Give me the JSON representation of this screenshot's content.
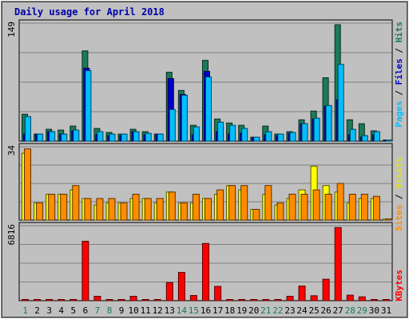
{
  "chart_data": {
    "type": "bar",
    "title": "Daily usage for April 2018",
    "days": [
      "1",
      "2",
      "3",
      "4",
      "5",
      "6",
      "7",
      "8",
      "9",
      "10",
      "11",
      "12",
      "13",
      "14",
      "15",
      "16",
      "17",
      "18",
      "19",
      "20",
      "21",
      "22",
      "23",
      "24",
      "25",
      "26",
      "27",
      "28",
      "29",
      "30",
      "31"
    ],
    "weekend_days": [
      "1",
      "7",
      "8",
      "14",
      "15",
      "21",
      "22",
      "28",
      "29"
    ],
    "panels": [
      {
        "id": "hits",
        "ymax_label": "149",
        "ymax": 149,
        "axis_labels": [
          "Pages",
          "Files",
          "Hits"
        ],
        "series": [
          {
            "name": "Hits",
            "color": "#1a7a5a",
            "values": [
              34,
              9,
              15,
              14,
              19,
              114,
              16,
              11,
              9,
              15,
              12,
              9,
              87,
              64,
              20,
              102,
              28,
              23,
              20,
              5,
              19,
              9,
              12,
              27,
              38,
              80,
              147,
              27,
              22,
              13,
              0
            ]
          },
          {
            "name": "Pages",
            "color": "#0000cc",
            "values": [
              9,
              9,
              12,
              9,
              13,
              92,
              8,
              7,
              7,
              12,
              8,
              9,
              79,
              59,
              8,
              88,
              12,
              9,
              10,
              5,
              8,
              7,
              10,
              22,
              28,
              44,
              52,
              8,
              5,
              8,
              0
            ]
          },
          {
            "name": "Files",
            "color": "#00bfff",
            "values": [
              31,
              9,
              12,
              9,
              14,
              89,
              12,
              9,
              9,
              12,
              10,
              9,
              40,
              58,
              18,
              81,
              24,
              20,
              16,
              5,
              12,
              9,
              11,
              22,
              29,
              45,
              97,
              15,
              7,
              12,
              0
            ]
          }
        ]
      },
      {
        "id": "visits",
        "ymax_label": "34",
        "ymax": 34,
        "axis_labels": [
          "Sites",
          "Visits"
        ],
        "series": [
          {
            "name": "Visits",
            "color": "#ffff00",
            "values": [
              31,
              8,
              12,
              12,
              14,
              10,
              7,
              8,
              8,
              10,
              10,
              8,
              13,
              8,
              8,
              10,
              12,
              16,
              14,
              5,
              12,
              7,
              10,
              14,
              25,
              16,
              13,
              8,
              10,
              10,
              0
            ]
          },
          {
            "name": "Sites",
            "color": "#ff8c00",
            "values": [
              33,
              8,
              12,
              12,
              16,
              10,
              10,
              10,
              8,
              12,
              10,
              10,
              13,
              8,
              12,
              10,
              14,
              16,
              16,
              5,
              16,
              8,
              12,
              12,
              14,
              12,
              17,
              12,
              12,
              11,
              0
            ]
          }
        ]
      },
      {
        "id": "kbytes",
        "ymax_label": "6816",
        "ymax": 6816,
        "axis_labels": [
          "KBytes"
        ],
        "series": [
          {
            "name": "KBytes",
            "color": "#ff0000",
            "values": [
              80,
              80,
              80,
              80,
              80,
              5400,
              400,
              80,
              80,
              400,
              80,
              80,
              1640,
              2570,
              470,
              5200,
              1300,
              80,
              80,
              80,
              80,
              80,
              400,
              1330,
              450,
              1950,
              6650,
              500,
              350,
              80,
              80
            ]
          }
        ]
      }
    ]
  }
}
